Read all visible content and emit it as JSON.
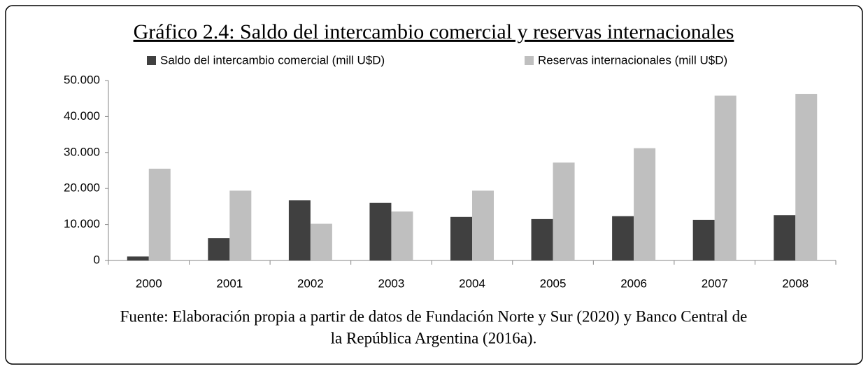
{
  "chart_data": {
    "type": "bar",
    "title": "Gráfico 2.4: Saldo del intercambio comercial y reservas internacionales",
    "categories": [
      "2000",
      "2001",
      "2002",
      "2003",
      "2004",
      "2005",
      "2006",
      "2007",
      "2008"
    ],
    "series": [
      {
        "name": "Saldo del intercambio comercial (mill U$D)",
        "color": "#404040",
        "values": [
          1100,
          6200,
          16700,
          16000,
          12100,
          11500,
          12300,
          11300,
          12600
        ]
      },
      {
        "name": "Reservas internacionales (mill U$D)",
        "color": "#bfbfbf",
        "values": [
          25500,
          19400,
          10200,
          13600,
          19400,
          27200,
          31200,
          45800,
          46300
        ]
      }
    ],
    "ylim": [
      0,
      50000
    ],
    "yticks": [
      0,
      {
        "value": 10000,
        "label": "10.000"
      },
      {
        "value": 20000,
        "label": "20.000"
      },
      {
        "value": 30000,
        "label": "30.000"
      },
      {
        "value": 40000,
        "label": "40.000"
      },
      {
        "value": 50000,
        "label": "50.000"
      }
    ],
    "grid": false,
    "legend": "top",
    "source": [
      "Fuente: Elaboración propia a partir de datos de Fundación Norte y Sur (2020) y Banco Central de",
      "la República Argentina (2016a)."
    ]
  }
}
